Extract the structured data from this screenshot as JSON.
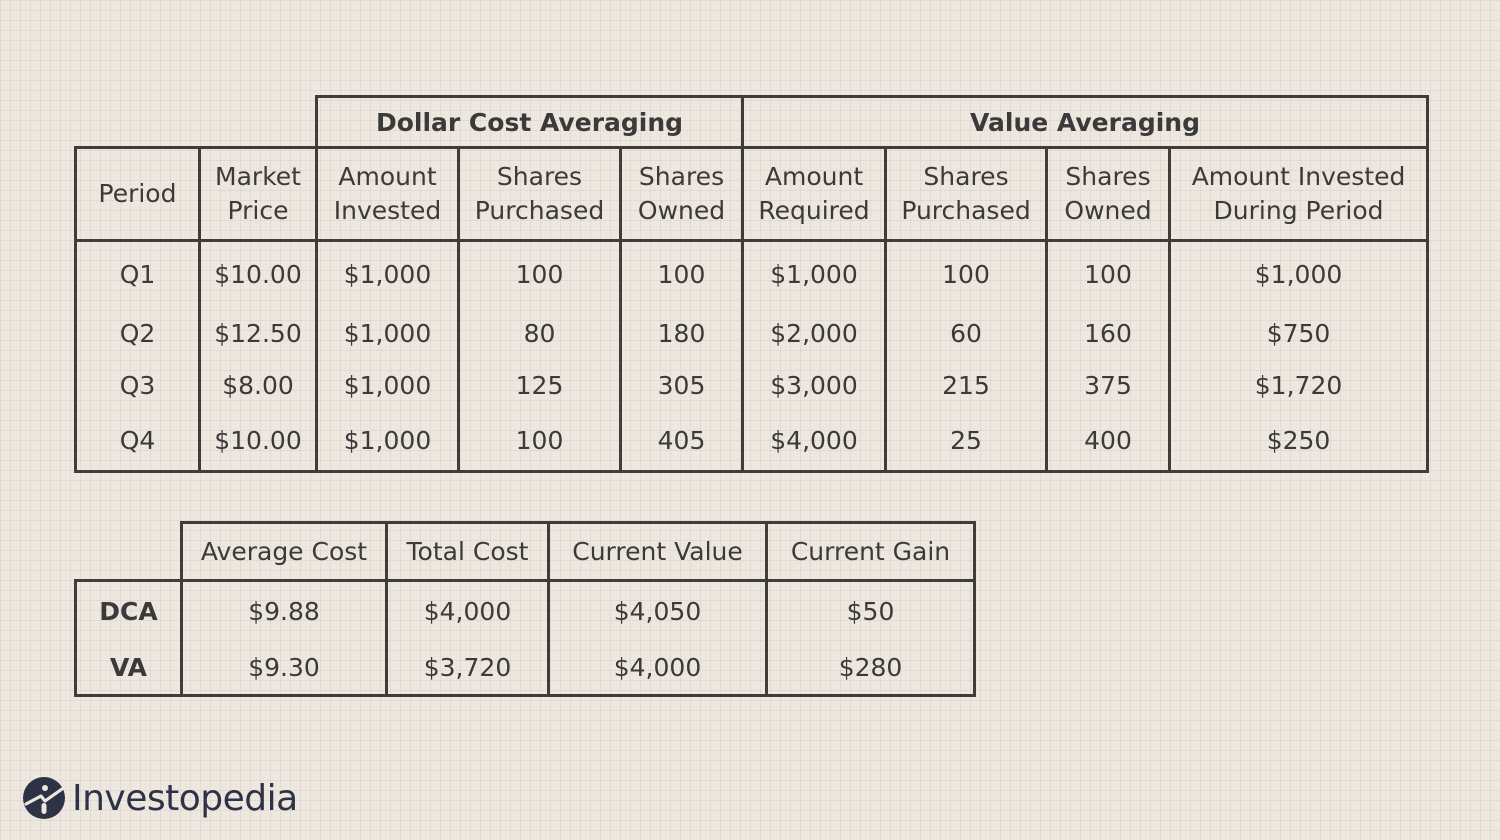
{
  "main_table": {
    "group_headers": [
      "Dollar Cost Averaging",
      "Value Averaging"
    ],
    "columns": [
      [
        "Period"
      ],
      [
        "Market",
        "Price"
      ],
      [
        "Amount",
        "Invested"
      ],
      [
        "Shares",
        "Purchased"
      ],
      [
        "Shares",
        "Owned"
      ],
      [
        "Amount",
        "Required"
      ],
      [
        "Shares",
        "Purchased"
      ],
      [
        "Shares",
        "Owned"
      ],
      [
        "Amount Invested",
        "During Period"
      ]
    ],
    "rows": [
      [
        "Q1",
        "$10.00",
        "$1,000",
        "100",
        "100",
        "$1,000",
        "100",
        "100",
        "$1,000"
      ],
      [
        "Q2",
        "$12.50",
        "$1,000",
        "80",
        "180",
        "$2,000",
        "60",
        "160",
        "$750"
      ],
      [
        "Q3",
        "$8.00",
        "$1,000",
        "125",
        "305",
        "$3,000",
        "215",
        "375",
        "$1,720"
      ],
      [
        "Q4",
        "$10.00",
        "$1,000",
        "100",
        "405",
        "$4,000",
        "25",
        "400",
        "$250"
      ]
    ]
  },
  "summary_table": {
    "columns": [
      "Average Cost",
      "Total Cost",
      "Current Value",
      "Current Gain"
    ],
    "rows": [
      [
        "DCA",
        "$9.88",
        "$4,000",
        "$4,050",
        "$50"
      ],
      [
        "VA",
        "$9.30",
        "$3,720",
        "$4,000",
        "$280"
      ]
    ]
  },
  "brand": {
    "name": "Investopedia",
    "icon": "investopedia-logo-icon",
    "colors": {
      "logo": "#2d3246",
      "accent": "#e6e1da",
      "lines": "#3e3d3c",
      "background": "#ede7df"
    }
  }
}
